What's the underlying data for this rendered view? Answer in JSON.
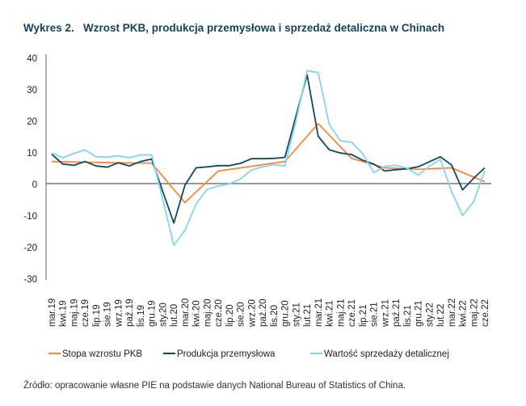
{
  "chart_data": {
    "type": "line",
    "title": "Wykres 2.   Wzrost PKB, produkcja przemysłowa i sprzedaż detaliczna w Chinach",
    "xlabel": "",
    "ylabel": "",
    "ylim": [
      -30,
      40
    ],
    "yticks": [
      40,
      30,
      20,
      10,
      0,
      -10,
      -20,
      -30
    ],
    "grid": false,
    "legend_position": "bottom",
    "categories": [
      "mar.19",
      "kwi.19",
      "maj.19",
      "cze.19",
      "lip.19",
      "sie.19",
      "wrz.19",
      "paź.19",
      "lis.19",
      "gru.19",
      "sty.20",
      "lut.20",
      "mar.20",
      "kwi.20",
      "maj.20",
      "cze.20",
      "lip.20",
      "sie.20",
      "wrz.20",
      "paź.20",
      "lis.20",
      "gru.20",
      "sty.21",
      "lut.21",
      "mar.21",
      "kwi.21",
      "maj.21",
      "cze.21",
      "lip.21",
      "sie.21",
      "wrz.21",
      "paź.21",
      "lis.21",
      "gru.21",
      "sty.22",
      "lut.22",
      "mar.22",
      "kwi.22",
      "maj.22",
      "cze.22"
    ],
    "series": [
      {
        "name": "Stopa wzrostu PKB",
        "color": "#f5883a",
        "values": [
          7.0,
          null,
          null,
          6.8,
          null,
          null,
          6.6,
          null,
          null,
          6.5,
          null,
          null,
          -6.0,
          null,
          null,
          4.0,
          null,
          null,
          5.5,
          null,
          null,
          7.0,
          null,
          null,
          19.0,
          null,
          null,
          8.0,
          null,
          null,
          5.0,
          null,
          null,
          4.5,
          null,
          null,
          5.0,
          null,
          null,
          0.6
        ]
      },
      {
        "name": "Produkcja przemysłowa",
        "color": "#0f4a62",
        "values": [
          9.3,
          6.2,
          5.8,
          7.0,
          5.6,
          5.2,
          6.6,
          5.6,
          7.0,
          7.8,
          -2.5,
          -12.5,
          -0.5,
          5.0,
          5.3,
          5.7,
          5.7,
          6.4,
          7.9,
          7.9,
          8.0,
          8.3,
          21.5,
          34.5,
          15.0,
          10.7,
          9.7,
          9.2,
          7.4,
          6.2,
          4.0,
          4.4,
          4.7,
          5.3,
          6.9,
          8.5,
          5.9,
          -2.0,
          1.7,
          5.0
        ]
      },
      {
        "name": "Wartość sprzedaży detalicznej",
        "color": "#87d3ef",
        "values": [
          9.7,
          8.2,
          9.6,
          10.7,
          8.5,
          8.4,
          8.8,
          8.2,
          9.1,
          9.1,
          -5.0,
          -19.5,
          -14.8,
          -6.5,
          -1.8,
          -0.8,
          -0.1,
          1.5,
          4.3,
          5.3,
          6.0,
          5.6,
          20.0,
          35.8,
          35.2,
          18.7,
          13.5,
          13.1,
          9.5,
          3.5,
          5.4,
          5.8,
          4.9,
          2.7,
          5.5,
          7.7,
          -2.5,
          -10.1,
          -5.7,
          4.1
        ]
      }
    ]
  },
  "source": "Źródło: opracowanie własne PIE na podstawie danych National Bureau of Statistics of China."
}
